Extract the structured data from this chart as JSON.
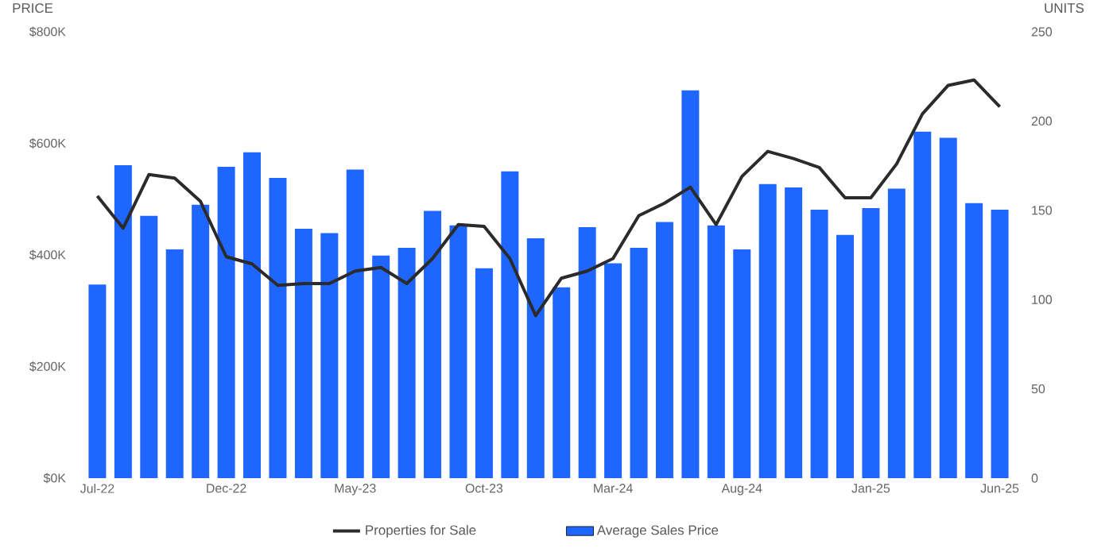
{
  "chart_data": {
    "type": "bar",
    "ylabel": "PRICE",
    "y2label": "UNITS",
    "legend": "bottom",
    "categories": [
      "Jul-22",
      null,
      null,
      null,
      null,
      "Dec-22",
      null,
      null,
      null,
      null,
      "May-23",
      null,
      null,
      null,
      null,
      "Oct-23",
      null,
      null,
      null,
      null,
      "Mar-24",
      null,
      null,
      null,
      null,
      "Aug-24",
      null,
      null,
      null,
      null,
      "Jan-25",
      null,
      null,
      null,
      null,
      "Jun-25"
    ],
    "ylim": [
      0,
      800000
    ],
    "yticks": [
      {
        "value": 0,
        "label": "$0K"
      },
      {
        "value": 200000,
        "label": "$200K"
      },
      {
        "value": 400000,
        "label": "$400K"
      },
      {
        "value": 600000,
        "label": "$600K"
      },
      {
        "value": 800000,
        "label": "$800K"
      }
    ],
    "y2lim": [
      0,
      250
    ],
    "y2ticks": [
      0,
      50,
      100,
      150,
      200,
      250
    ],
    "series": [
      {
        "name": "Properties for Sale",
        "type": "line",
        "axis": "y2",
        "color": "#2b2b2b",
        "values": [
          158,
          140,
          170,
          168,
          155,
          124,
          120,
          108,
          109,
          109,
          116,
          118,
          109,
          123,
          142,
          141,
          123,
          91,
          112,
          116,
          123,
          147,
          154,
          163,
          142,
          169,
          183,
          179,
          174,
          157,
          157,
          176,
          204,
          220,
          223,
          208
        ]
      },
      {
        "name": "Average Sales Price",
        "color": "#1f66ff",
        "values": [
          347000,
          561000,
          470000,
          410000,
          490000,
          558000,
          584000,
          538000,
          447000,
          439000,
          553000,
          399000,
          413000,
          479000,
          453000,
          376000,
          550000,
          430000,
          342000,
          450000,
          385000,
          413000,
          459000,
          695000,
          453000,
          410000,
          527000,
          521000,
          481000,
          436000,
          484000,
          519000,
          621000,
          610000,
          493000,
          481000
        ]
      }
    ]
  }
}
